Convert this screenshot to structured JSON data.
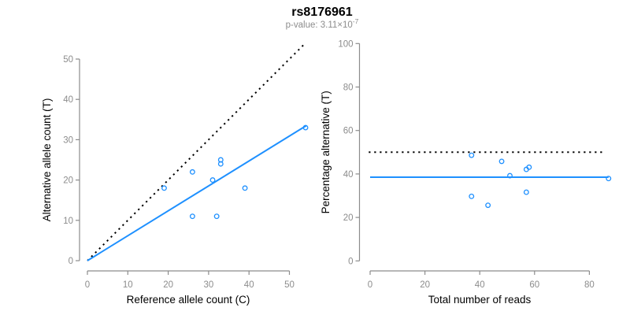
{
  "figure": {
    "title": "rs8176961",
    "subtitle_text": "p-value: 3.11×10",
    "subtitle_exponent": "-7"
  },
  "colors": {
    "accent_blue": "#1E90FF",
    "axis_gray": "#8C8C8C",
    "tick_label_gray": "#8C8C8C",
    "axis_title_black": "#000000",
    "dotted_line_black": "#000000",
    "background": "#FFFFFF"
  },
  "chart_data": [
    {
      "type": "scatter",
      "panel": "allele-counts",
      "xlabel": "Reference allele count (C)",
      "ylabel": "Alternative allele count (T)",
      "xlim": [
        0,
        54
      ],
      "ylim": [
        0,
        54
      ],
      "xticks": [
        0,
        10,
        20,
        30,
        40,
        50
      ],
      "yticks": [
        0,
        10,
        20,
        30,
        40,
        50
      ],
      "grid": false,
      "marker": "open-circle",
      "points": [
        [
          19,
          18
        ],
        [
          26,
          22
        ],
        [
          26,
          11
        ],
        [
          31,
          20
        ],
        [
          32,
          11
        ],
        [
          33,
          24
        ],
        [
          33,
          25
        ],
        [
          39,
          18
        ],
        [
          54,
          33
        ]
      ],
      "lines": [
        {
          "name": "identity-50pct-line",
          "style": "dotted",
          "color": "#000000",
          "x": [
            0,
            54
          ],
          "y": [
            0,
            54
          ]
        },
        {
          "name": "fitted-ratio-line",
          "style": "solid",
          "color": "#1E90FF",
          "x": [
            0,
            54.2
          ],
          "y": [
            0,
            33.5
          ]
        }
      ]
    },
    {
      "type": "scatter",
      "panel": "percentage-vs-reads",
      "xlabel": "Total number of reads",
      "ylabel": "Percentage alternative (T)",
      "xlim": [
        0,
        87
      ],
      "ylim": [
        0,
        100
      ],
      "xticks": [
        0,
        20,
        40,
        60,
        80
      ],
      "yticks": [
        0,
        20,
        40,
        60,
        80,
        100
      ],
      "grid": false,
      "marker": "open-circle",
      "points": [
        [
          37,
          48.6
        ],
        [
          48,
          45.8
        ],
        [
          58,
          43.1
        ],
        [
          57,
          42.1
        ],
        [
          51,
          39.2
        ],
        [
          87,
          37.9
        ],
        [
          57,
          31.6
        ],
        [
          37,
          29.7
        ],
        [
          43,
          25.6
        ]
      ],
      "lines": [
        {
          "name": "expected-50pct-line",
          "style": "dotted",
          "color": "#000000",
          "x": [
            -0.5,
            85.5
          ],
          "y": [
            50,
            50
          ]
        },
        {
          "name": "mean-percentage-line",
          "style": "solid",
          "color": "#1E90FF",
          "x": [
            0,
            87
          ],
          "y": [
            38.5,
            38.5
          ]
        }
      ]
    }
  ]
}
